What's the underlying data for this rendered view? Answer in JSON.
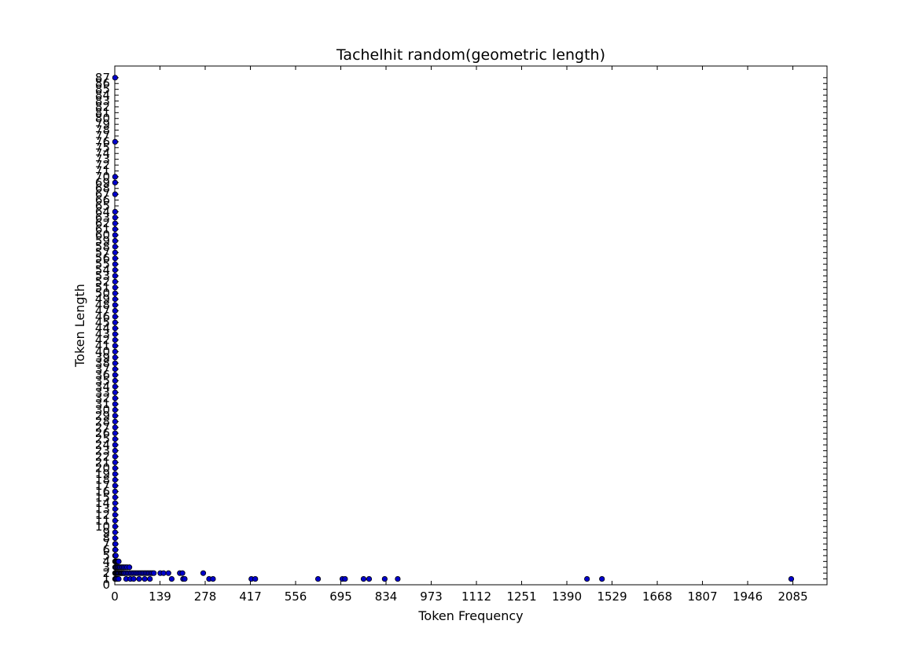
{
  "chart_data": {
    "type": "scatter",
    "title": "Tachelhit random(geometric length)",
    "xlabel": "Token Frequency",
    "ylabel": "Token Length",
    "xlim": [
      0,
      2190
    ],
    "ylim": [
      0,
      89
    ],
    "xticks": [
      0,
      139,
      278,
      417,
      556,
      695,
      834,
      973,
      1112,
      1251,
      1390,
      1529,
      1668,
      1807,
      1946,
      2085
    ],
    "yticks": [
      0,
      1,
      2,
      3,
      4,
      5,
      6,
      7,
      8,
      9,
      10,
      11,
      12,
      13,
      14,
      15,
      16,
      17,
      18,
      19,
      20,
      21,
      22,
      23,
      24,
      25,
      26,
      27,
      28,
      29,
      30,
      31,
      32,
      33,
      34,
      35,
      36,
      37,
      38,
      39,
      40,
      41,
      42,
      43,
      44,
      45,
      46,
      47,
      48,
      49,
      50,
      51,
      52,
      53,
      54,
      55,
      56,
      57,
      58,
      59,
      60,
      61,
      62,
      63,
      64,
      65,
      66,
      67,
      68,
      69,
      70,
      71,
      72,
      73,
      74,
      75,
      76,
      77,
      78,
      79,
      80,
      81,
      82,
      83,
      84,
      85,
      86,
      87
    ],
    "grid": false,
    "marker_color": "#0000cc",
    "points": [
      [
        1,
        1
      ],
      [
        2,
        1
      ],
      [
        3,
        1
      ],
      [
        5,
        1
      ],
      [
        8,
        1
      ],
      [
        12,
        1
      ],
      [
        35,
        1
      ],
      [
        48,
        1
      ],
      [
        58,
        1
      ],
      [
        75,
        1
      ],
      [
        92,
        1
      ],
      [
        108,
        1
      ],
      [
        175,
        1
      ],
      [
        210,
        1
      ],
      [
        215,
        1
      ],
      [
        290,
        1
      ],
      [
        302,
        1
      ],
      [
        420,
        1
      ],
      [
        432,
        1
      ],
      [
        625,
        1
      ],
      [
        700,
        1
      ],
      [
        708,
        1
      ],
      [
        765,
        1
      ],
      [
        782,
        1
      ],
      [
        830,
        1
      ],
      [
        870,
        1
      ],
      [
        1452,
        1
      ],
      [
        1498,
        1
      ],
      [
        2080,
        1
      ],
      [
        1,
        2
      ],
      [
        2,
        2
      ],
      [
        3,
        2
      ],
      [
        4,
        2
      ],
      [
        6,
        2
      ],
      [
        8,
        2
      ],
      [
        10,
        2
      ],
      [
        12,
        2
      ],
      [
        15,
        2
      ],
      [
        18,
        2
      ],
      [
        20,
        2
      ],
      [
        22,
        2
      ],
      [
        25,
        2
      ],
      [
        28,
        2
      ],
      [
        30,
        2
      ],
      [
        35,
        2
      ],
      [
        40,
        2
      ],
      [
        45,
        2
      ],
      [
        50,
        2
      ],
      [
        55,
        2
      ],
      [
        60,
        2
      ],
      [
        65,
        2
      ],
      [
        70,
        2
      ],
      [
        75,
        2
      ],
      [
        80,
        2
      ],
      [
        85,
        2
      ],
      [
        90,
        2
      ],
      [
        95,
        2
      ],
      [
        100,
        2
      ],
      [
        105,
        2
      ],
      [
        110,
        2
      ],
      [
        115,
        2
      ],
      [
        120,
        2
      ],
      [
        140,
        2
      ],
      [
        150,
        2
      ],
      [
        165,
        2
      ],
      [
        200,
        2
      ],
      [
        208,
        2
      ],
      [
        272,
        2
      ],
      [
        1,
        3
      ],
      [
        3,
        3
      ],
      [
        5,
        3
      ],
      [
        8,
        3
      ],
      [
        10,
        3
      ],
      [
        13,
        3
      ],
      [
        16,
        3
      ],
      [
        20,
        3
      ],
      [
        24,
        3
      ],
      [
        28,
        3
      ],
      [
        33,
        3
      ],
      [
        38,
        3
      ],
      [
        45,
        3
      ],
      [
        1,
        4
      ],
      [
        2,
        4
      ],
      [
        4,
        4
      ],
      [
        6,
        4
      ],
      [
        8,
        4
      ],
      [
        10,
        4
      ],
      [
        12,
        4
      ],
      [
        1,
        5
      ],
      [
        2,
        5
      ],
      [
        3,
        5
      ],
      [
        1,
        6
      ],
      [
        2,
        6
      ],
      [
        1,
        7
      ],
      [
        2,
        7
      ],
      [
        1,
        8
      ],
      [
        1,
        9
      ],
      [
        1,
        10
      ],
      [
        1,
        11
      ],
      [
        1,
        12
      ],
      [
        1,
        13
      ],
      [
        1,
        14
      ],
      [
        1,
        15
      ],
      [
        1,
        16
      ],
      [
        1,
        17
      ],
      [
        1,
        18
      ],
      [
        1,
        19
      ],
      [
        1,
        20
      ],
      [
        1,
        21
      ],
      [
        1,
        22
      ],
      [
        1,
        23
      ],
      [
        1,
        24
      ],
      [
        1,
        25
      ],
      [
        1,
        26
      ],
      [
        1,
        27
      ],
      [
        1,
        28
      ],
      [
        1,
        29
      ],
      [
        1,
        30
      ],
      [
        1,
        31
      ],
      [
        1,
        32
      ],
      [
        1,
        33
      ],
      [
        1,
        34
      ],
      [
        1,
        35
      ],
      [
        1,
        36
      ],
      [
        1,
        37
      ],
      [
        1,
        38
      ],
      [
        1,
        39
      ],
      [
        1,
        40
      ],
      [
        1,
        41
      ],
      [
        1,
        42
      ],
      [
        1,
        43
      ],
      [
        1,
        44
      ],
      [
        1,
        45
      ],
      [
        1,
        46
      ],
      [
        1,
        47
      ],
      [
        1,
        48
      ],
      [
        1,
        49
      ],
      [
        1,
        50
      ],
      [
        1,
        51
      ],
      [
        1,
        52
      ],
      [
        1,
        53
      ],
      [
        1,
        54
      ],
      [
        1,
        55
      ],
      [
        1,
        56
      ],
      [
        1,
        57
      ],
      [
        1,
        58
      ],
      [
        1,
        59
      ],
      [
        1,
        60
      ],
      [
        1,
        61
      ],
      [
        1,
        62
      ],
      [
        1,
        63
      ],
      [
        1,
        64
      ],
      [
        1,
        67
      ],
      [
        1,
        69
      ],
      [
        1,
        70
      ],
      [
        1,
        76
      ],
      [
        1,
        87
      ]
    ]
  }
}
